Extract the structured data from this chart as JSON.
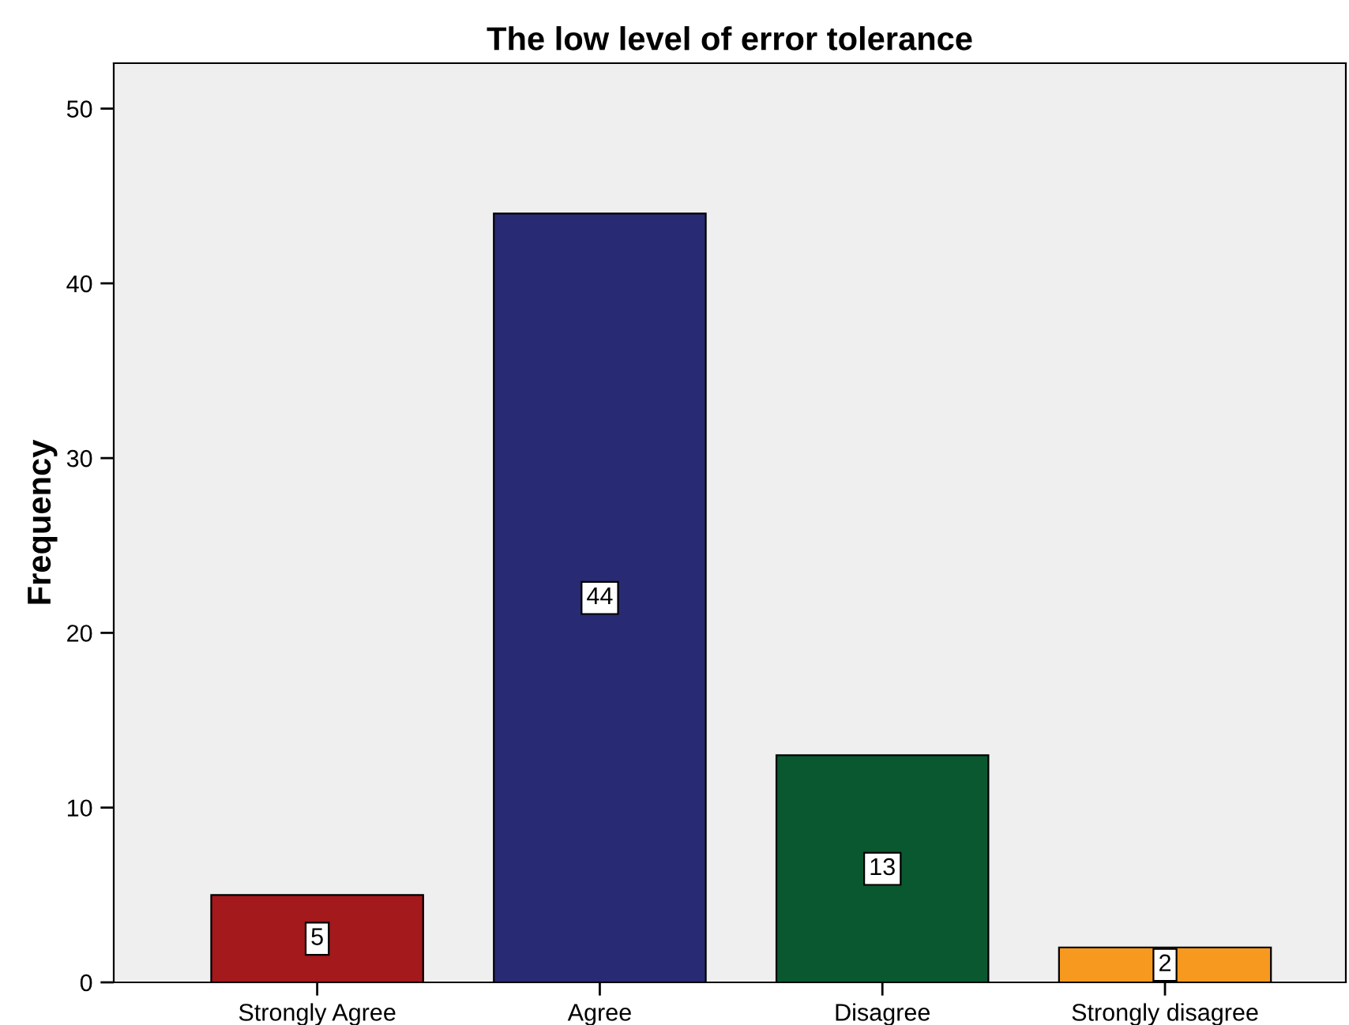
{
  "chart_data": {
    "type": "bar",
    "title": "The low level of error tolerance",
    "ylabel": "Frequency",
    "categories": [
      "Strongly Agree",
      "Agree",
      "Disagree",
      "Strongly disagree"
    ],
    "values": [
      5,
      44,
      13,
      2
    ],
    "colors": [
      "#a3191c",
      "#282a73",
      "#0a5830",
      "#f7991f"
    ],
    "ylim": [
      0,
      52.6
    ],
    "yticks": [
      0,
      10,
      20,
      30,
      40,
      50
    ],
    "data_labels": true,
    "grid": false,
    "legend": false
  }
}
